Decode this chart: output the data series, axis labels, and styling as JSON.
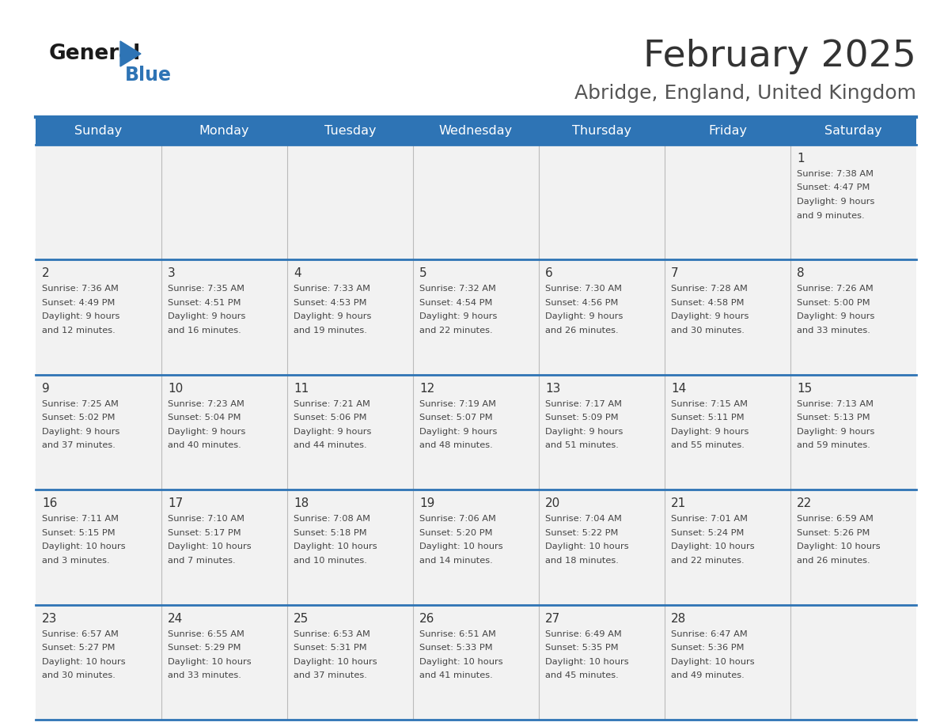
{
  "title": "February 2025",
  "subtitle": "Abridge, England, United Kingdom",
  "days_of_week": [
    "Sunday",
    "Monday",
    "Tuesday",
    "Wednesday",
    "Thursday",
    "Friday",
    "Saturday"
  ],
  "header_bg": "#2E74B5",
  "header_text_color": "#FFFFFF",
  "cell_bg": "#F2F2F2",
  "cell_text_color": "#333333",
  "day_number_color": "#333333",
  "separator_color": "#2E74B5",
  "title_color": "#333333",
  "subtitle_color": "#555555",
  "logo_general_color": "#1A1A1A",
  "logo_blue_color": "#2E74B5",
  "weeks": [
    [
      {
        "day": null,
        "info": null
      },
      {
        "day": null,
        "info": null
      },
      {
        "day": null,
        "info": null
      },
      {
        "day": null,
        "info": null
      },
      {
        "day": null,
        "info": null
      },
      {
        "day": null,
        "info": null
      },
      {
        "day": 1,
        "info": "Sunrise: 7:38 AM\nSunset: 4:47 PM\nDaylight: 9 hours\nand 9 minutes."
      }
    ],
    [
      {
        "day": 2,
        "info": "Sunrise: 7:36 AM\nSunset: 4:49 PM\nDaylight: 9 hours\nand 12 minutes."
      },
      {
        "day": 3,
        "info": "Sunrise: 7:35 AM\nSunset: 4:51 PM\nDaylight: 9 hours\nand 16 minutes."
      },
      {
        "day": 4,
        "info": "Sunrise: 7:33 AM\nSunset: 4:53 PM\nDaylight: 9 hours\nand 19 minutes."
      },
      {
        "day": 5,
        "info": "Sunrise: 7:32 AM\nSunset: 4:54 PM\nDaylight: 9 hours\nand 22 minutes."
      },
      {
        "day": 6,
        "info": "Sunrise: 7:30 AM\nSunset: 4:56 PM\nDaylight: 9 hours\nand 26 minutes."
      },
      {
        "day": 7,
        "info": "Sunrise: 7:28 AM\nSunset: 4:58 PM\nDaylight: 9 hours\nand 30 minutes."
      },
      {
        "day": 8,
        "info": "Sunrise: 7:26 AM\nSunset: 5:00 PM\nDaylight: 9 hours\nand 33 minutes."
      }
    ],
    [
      {
        "day": 9,
        "info": "Sunrise: 7:25 AM\nSunset: 5:02 PM\nDaylight: 9 hours\nand 37 minutes."
      },
      {
        "day": 10,
        "info": "Sunrise: 7:23 AM\nSunset: 5:04 PM\nDaylight: 9 hours\nand 40 minutes."
      },
      {
        "day": 11,
        "info": "Sunrise: 7:21 AM\nSunset: 5:06 PM\nDaylight: 9 hours\nand 44 minutes."
      },
      {
        "day": 12,
        "info": "Sunrise: 7:19 AM\nSunset: 5:07 PM\nDaylight: 9 hours\nand 48 minutes."
      },
      {
        "day": 13,
        "info": "Sunrise: 7:17 AM\nSunset: 5:09 PM\nDaylight: 9 hours\nand 51 minutes."
      },
      {
        "day": 14,
        "info": "Sunrise: 7:15 AM\nSunset: 5:11 PM\nDaylight: 9 hours\nand 55 minutes."
      },
      {
        "day": 15,
        "info": "Sunrise: 7:13 AM\nSunset: 5:13 PM\nDaylight: 9 hours\nand 59 minutes."
      }
    ],
    [
      {
        "day": 16,
        "info": "Sunrise: 7:11 AM\nSunset: 5:15 PM\nDaylight: 10 hours\nand 3 minutes."
      },
      {
        "day": 17,
        "info": "Sunrise: 7:10 AM\nSunset: 5:17 PM\nDaylight: 10 hours\nand 7 minutes."
      },
      {
        "day": 18,
        "info": "Sunrise: 7:08 AM\nSunset: 5:18 PM\nDaylight: 10 hours\nand 10 minutes."
      },
      {
        "day": 19,
        "info": "Sunrise: 7:06 AM\nSunset: 5:20 PM\nDaylight: 10 hours\nand 14 minutes."
      },
      {
        "day": 20,
        "info": "Sunrise: 7:04 AM\nSunset: 5:22 PM\nDaylight: 10 hours\nand 18 minutes."
      },
      {
        "day": 21,
        "info": "Sunrise: 7:01 AM\nSunset: 5:24 PM\nDaylight: 10 hours\nand 22 minutes."
      },
      {
        "day": 22,
        "info": "Sunrise: 6:59 AM\nSunset: 5:26 PM\nDaylight: 10 hours\nand 26 minutes."
      }
    ],
    [
      {
        "day": 23,
        "info": "Sunrise: 6:57 AM\nSunset: 5:27 PM\nDaylight: 10 hours\nand 30 minutes."
      },
      {
        "day": 24,
        "info": "Sunrise: 6:55 AM\nSunset: 5:29 PM\nDaylight: 10 hours\nand 33 minutes."
      },
      {
        "day": 25,
        "info": "Sunrise: 6:53 AM\nSunset: 5:31 PM\nDaylight: 10 hours\nand 37 minutes."
      },
      {
        "day": 26,
        "info": "Sunrise: 6:51 AM\nSunset: 5:33 PM\nDaylight: 10 hours\nand 41 minutes."
      },
      {
        "day": 27,
        "info": "Sunrise: 6:49 AM\nSunset: 5:35 PM\nDaylight: 10 hours\nand 45 minutes."
      },
      {
        "day": 28,
        "info": "Sunrise: 6:47 AM\nSunset: 5:36 PM\nDaylight: 10 hours\nand 49 minutes."
      },
      {
        "day": null,
        "info": null
      }
    ]
  ]
}
